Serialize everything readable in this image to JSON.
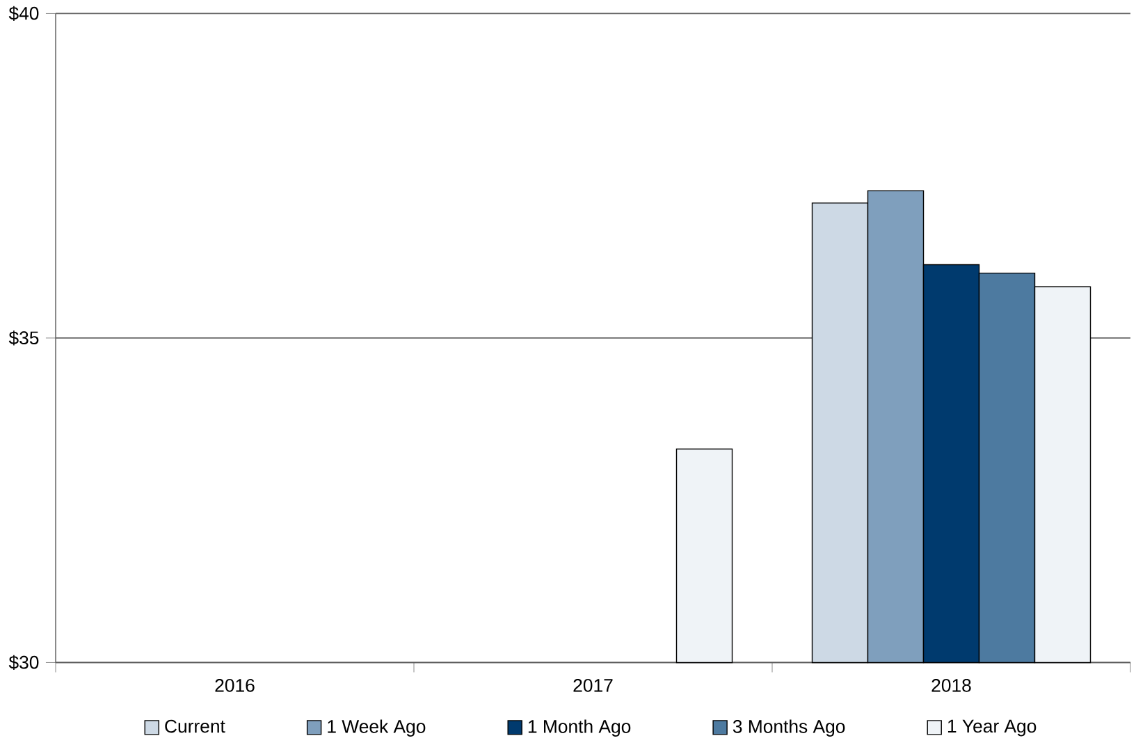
{
  "chart_data": {
    "type": "bar",
    "categories": [
      "2016",
      "2017",
      "2018"
    ],
    "series": [
      {
        "name": "Current",
        "color": "#cdd9e5",
        "values": [
          null,
          null,
          37.08
        ]
      },
      {
        "name": "1 Week Ago",
        "color": "#7f9fbd",
        "values": [
          null,
          null,
          37.27
        ]
      },
      {
        "name": "1 Month Ago",
        "color": "#003a6e",
        "values": [
          null,
          null,
          36.13
        ]
      },
      {
        "name": "3 Months Ago",
        "color": "#4d7aa0",
        "values": [
          null,
          null,
          36.0
        ]
      },
      {
        "name": "1 Year Ago",
        "color": "#eff3f7",
        "values": [
          null,
          33.29,
          35.79
        ]
      }
    ],
    "ylim": [
      30,
      40
    ],
    "yticks": [
      {
        "value": 30,
        "label": "$30"
      },
      {
        "value": 35,
        "label": "$35"
      },
      {
        "value": 40,
        "label": "$40"
      }
    ],
    "grid": "y",
    "legend": "bottom"
  }
}
